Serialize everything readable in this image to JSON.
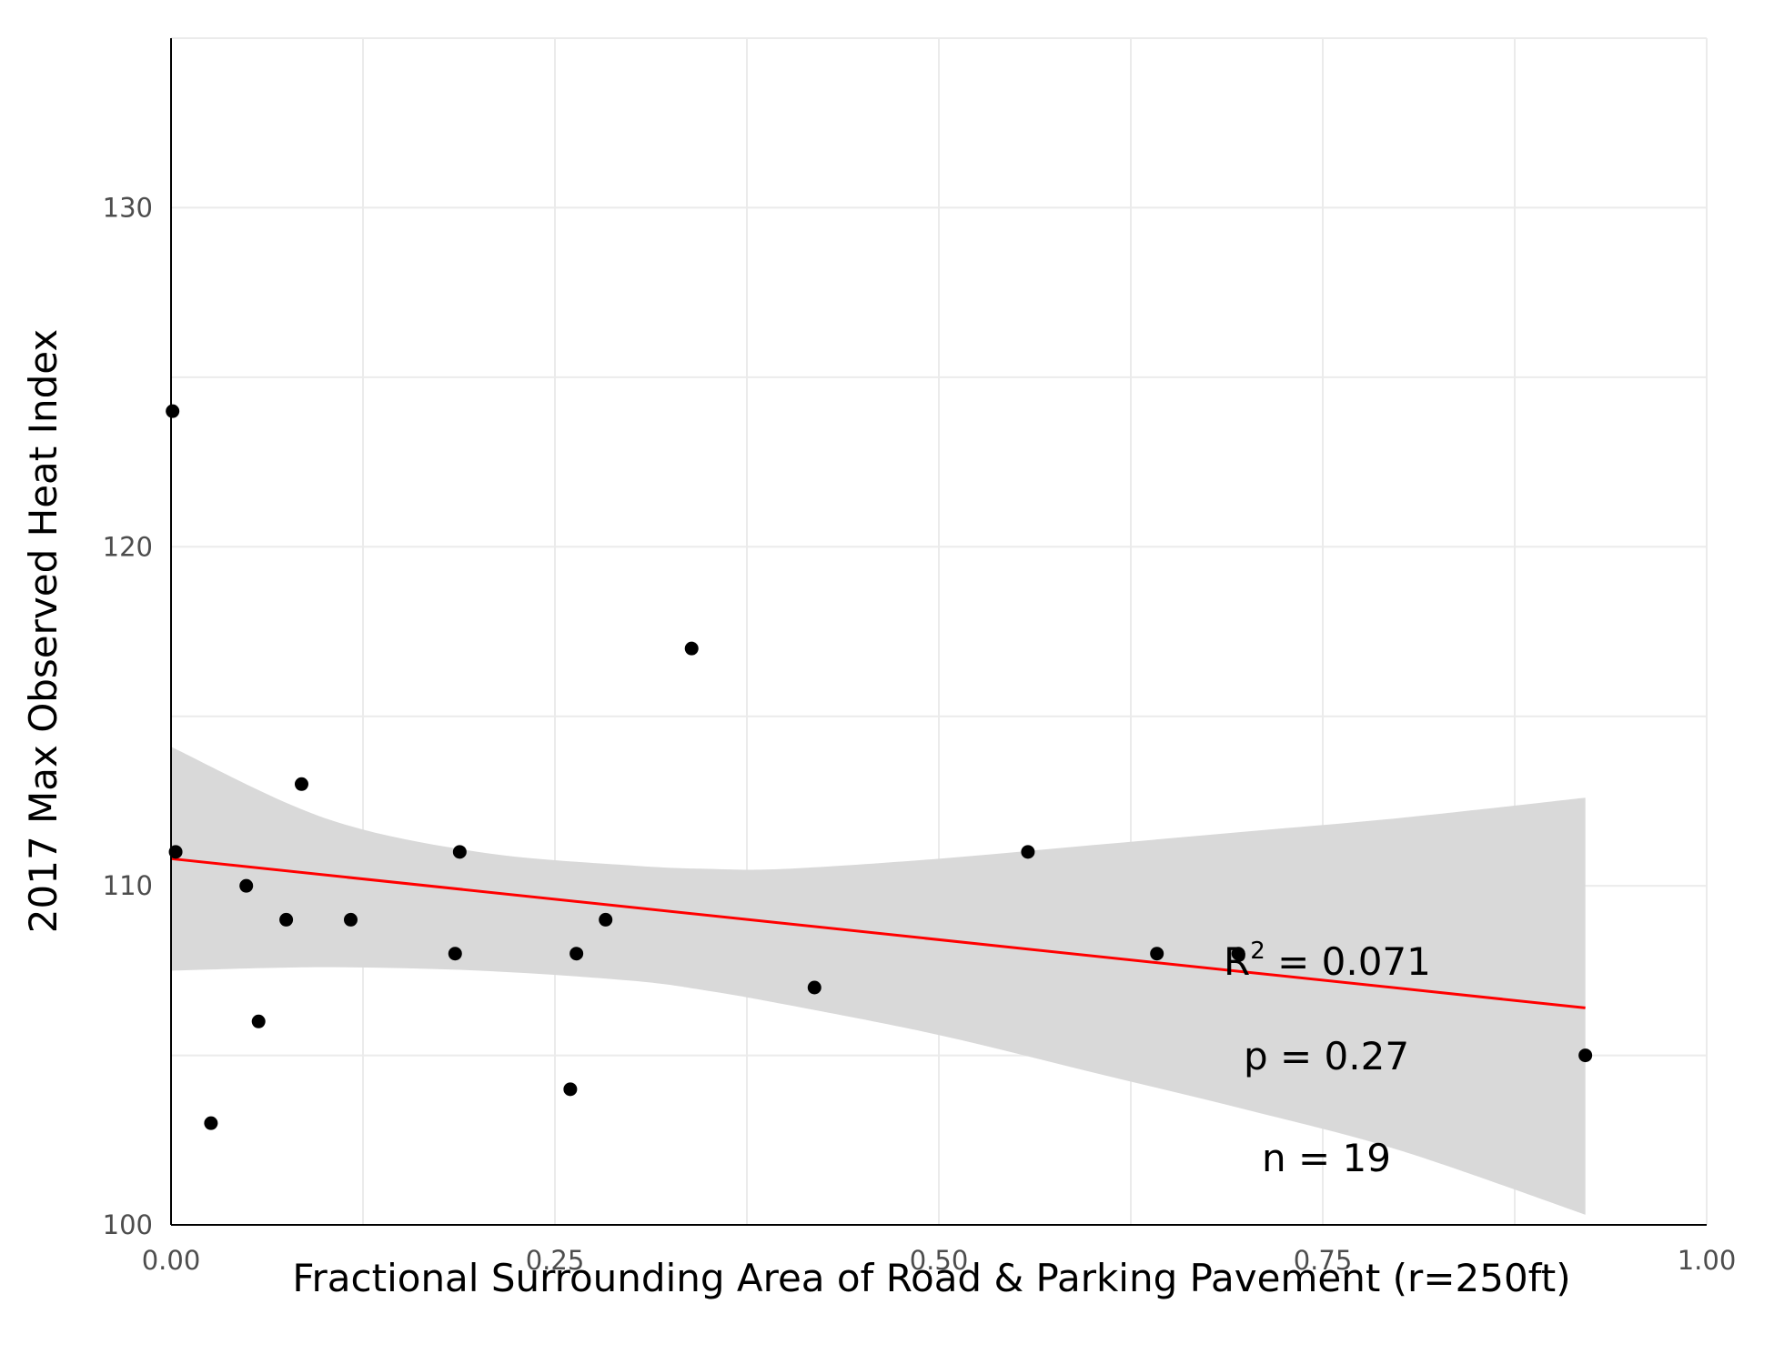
{
  "chart_data": {
    "type": "scatter",
    "xlabel": "Fractional Surrounding Area of Road & Parking Pavement (r=250ft)",
    "ylabel": "2017 Max Observed Heat Index",
    "xlim": [
      0,
      1
    ],
    "ylim": [
      100,
      135
    ],
    "x_ticks": [
      0,
      0.25,
      0.5,
      0.75,
      1
    ],
    "x_tick_labels": [
      "0.00",
      "0.25",
      "0.50",
      "0.75",
      "1.00"
    ],
    "y_ticks": [
      100,
      110,
      120,
      130
    ],
    "y_tick_labels": [
      "100",
      "110",
      "120",
      "130"
    ],
    "grid": true,
    "points": [
      {
        "x": 0.001,
        "y": 124
      },
      {
        "x": 0.003,
        "y": 111
      },
      {
        "x": 0.026,
        "y": 103
      },
      {
        "x": 0.049,
        "y": 110
      },
      {
        "x": 0.057,
        "y": 106
      },
      {
        "x": 0.075,
        "y": 109
      },
      {
        "x": 0.085,
        "y": 113
      },
      {
        "x": 0.117,
        "y": 109
      },
      {
        "x": 0.185,
        "y": 108
      },
      {
        "x": 0.188,
        "y": 111
      },
      {
        "x": 0.26,
        "y": 104
      },
      {
        "x": 0.264,
        "y": 108
      },
      {
        "x": 0.283,
        "y": 109
      },
      {
        "x": 0.339,
        "y": 117
      },
      {
        "x": 0.419,
        "y": 107
      },
      {
        "x": 0.558,
        "y": 111
      },
      {
        "x": 0.642,
        "y": 108
      },
      {
        "x": 0.695,
        "y": 108
      },
      {
        "x": 0.921,
        "y": 105
      }
    ],
    "fit_line": {
      "x": [
        0.0,
        0.921
      ],
      "y": [
        110.8,
        106.4
      ],
      "color": "#ff0000"
    },
    "confidence_band": {
      "color": "#d9d9d9",
      "x": [
        0.0,
        0.1,
        0.2,
        0.3,
        0.35,
        0.4,
        0.5,
        0.6,
        0.7,
        0.8,
        0.921
      ],
      "upper": [
        114.1,
        112.0,
        111.0,
        110.6,
        110.5,
        110.5,
        110.8,
        111.2,
        111.6,
        112.0,
        112.6
      ],
      "lower": [
        107.5,
        107.6,
        107.5,
        107.2,
        106.9,
        106.5,
        105.6,
        104.5,
        103.4,
        102.2,
        100.3
      ]
    },
    "point_color": "#000000",
    "annotations": {
      "r2_prefix": "R",
      "r2_sup": "2",
      "r2_value": " = 0.071",
      "p": "p = 0.27",
      "n": "n = 19"
    }
  }
}
